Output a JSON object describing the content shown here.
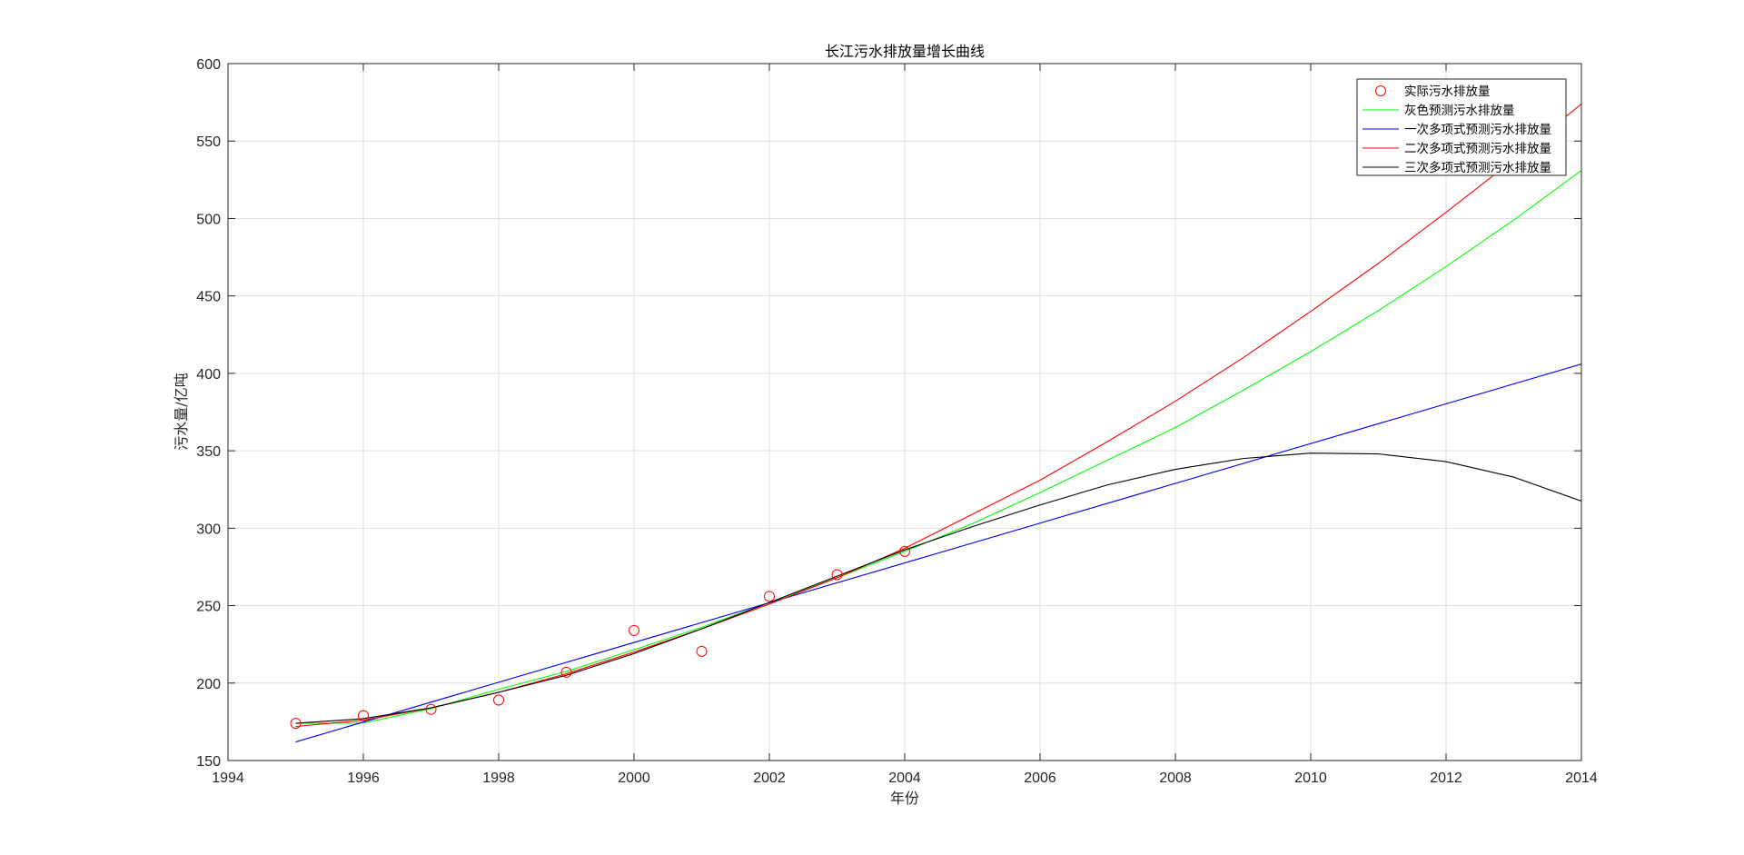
{
  "chart_data": {
    "type": "line",
    "title": "长江污水排放量增长曲线",
    "xlabel": "年份",
    "ylabel": "污水量/亿吨",
    "xlim": [
      1994,
      2014
    ],
    "ylim": [
      150,
      600
    ],
    "xticks": [
      1994,
      1996,
      1998,
      2000,
      2002,
      2004,
      2006,
      2008,
      2010,
      2012,
      2014
    ],
    "yticks": [
      150,
      200,
      250,
      300,
      350,
      400,
      450,
      500,
      550,
      600
    ],
    "grid": true,
    "legend_position": "top-right",
    "series": [
      {
        "name": "实际污水排放量",
        "style": "markers",
        "marker": "circle",
        "color": "#ff0000",
        "x": [
          1995,
          1996,
          1997,
          1998,
          1999,
          2000,
          2001,
          2002,
          2003,
          2004
        ],
        "y": [
          174,
          179,
          183,
          189,
          207,
          234,
          220.5,
          256,
          270,
          285
        ]
      },
      {
        "name": "灰色预测污水排放量",
        "style": "line",
        "color": "#00ff00",
        "x": [
          1995,
          1996,
          1997,
          1998,
          1999,
          2000,
          2001,
          2002,
          2003,
          2004,
          2005,
          2006,
          2007,
          2008,
          2009,
          2010,
          2011,
          2012,
          2013,
          2014
        ],
        "y": [
          174,
          174.2,
          183.5,
          196,
          207.5,
          221.5,
          236,
          252,
          268,
          285,
          303,
          323,
          344,
          365,
          389,
          414,
          440.5,
          469,
          499,
          531
        ]
      },
      {
        "name": "一次多项式预测污水排放量",
        "style": "line",
        "color": "#0000ff",
        "x": [
          1995,
          2014
        ],
        "y": [
          162,
          406
        ]
      },
      {
        "name": "二次多项式预测污水排放量",
        "style": "line",
        "color": "#ff0000",
        "x": [
          1995,
          1996,
          1997,
          1998,
          1999,
          2000,
          2001,
          2002,
          2003,
          2004,
          2005,
          2006,
          2007,
          2008,
          2009,
          2010,
          2011,
          2012,
          2013,
          2014
        ],
        "y": [
          172,
          176,
          184,
          194,
          206,
          220,
          235,
          251,
          268,
          287,
          309,
          331,
          356,
          382,
          410,
          440,
          471,
          504,
          538,
          574
        ]
      },
      {
        "name": "三次多项式预测污水排放量",
        "style": "line",
        "color": "#000000",
        "x": [
          1995,
          1996,
          1997,
          1998,
          1999,
          2000,
          2001,
          2002,
          2003,
          2004,
          2005,
          2006,
          2007,
          2008,
          2009,
          2010,
          2011,
          2012,
          2013,
          2014
        ],
        "y": [
          174,
          177,
          184,
          194,
          205,
          219,
          235,
          252,
          269,
          286,
          301,
          315,
          328,
          338,
          345,
          348.5,
          348,
          343,
          333,
          317.5
        ]
      }
    ]
  }
}
